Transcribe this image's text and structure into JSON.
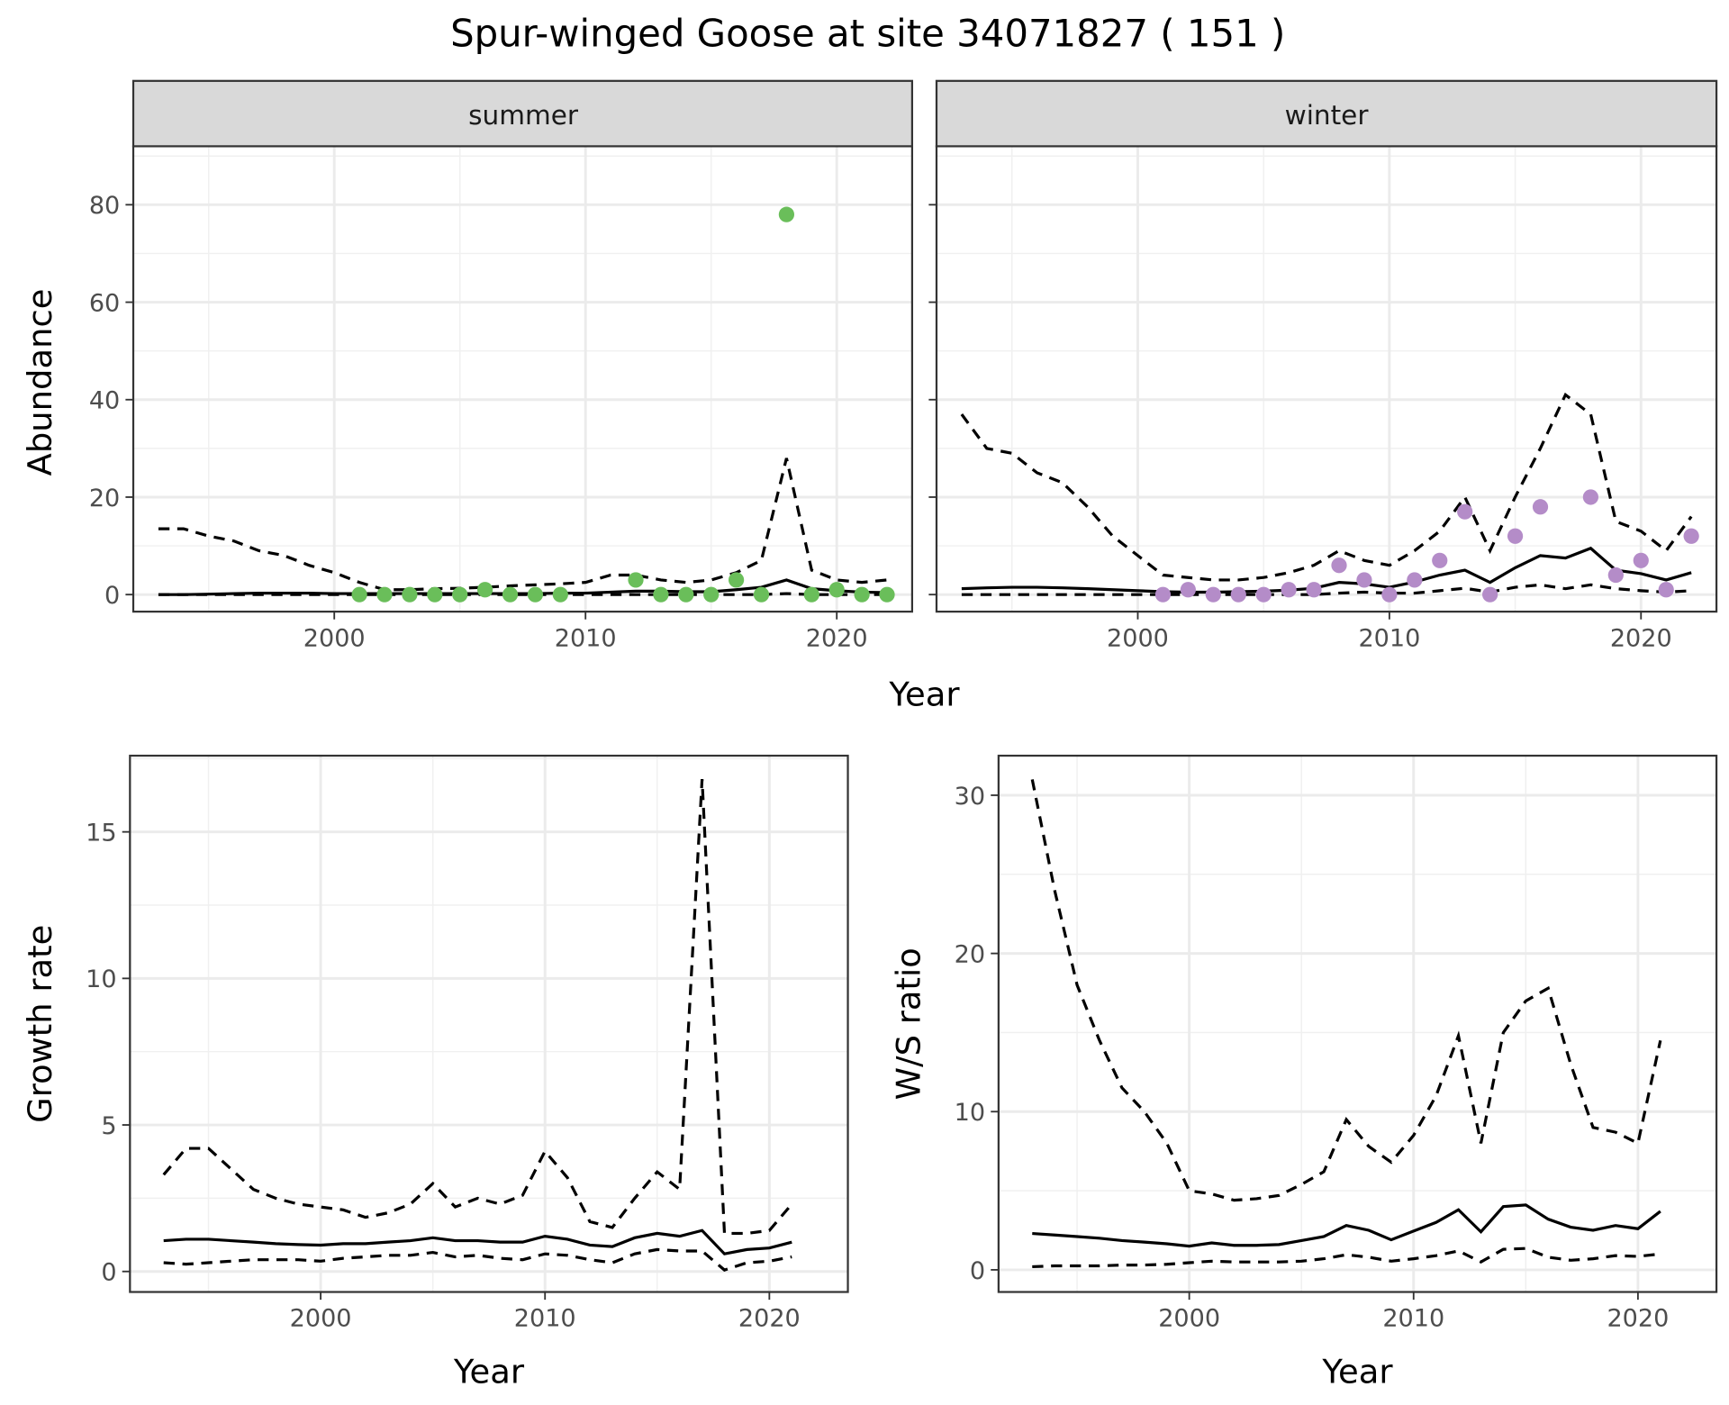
{
  "chart_data": [
    {
      "type": "line",
      "title": "Spur-winged Goose at site 34071827 ( 151 )",
      "facet": "summer",
      "xlabel": "Year",
      "ylabel": "Abundance",
      "xlim": [
        1992,
        2023
      ],
      "ylim": [
        -3.5,
        92
      ],
      "xticks": [
        2000,
        2010,
        2020
      ],
      "yticks": [
        0,
        20,
        40,
        60,
        80
      ],
      "point_color": "#6ABE5A",
      "x": [
        1993,
        1994,
        1995,
        1996,
        1997,
        1998,
        1999,
        2000,
        2001,
        2002,
        2003,
        2004,
        2005,
        2006,
        2007,
        2008,
        2009,
        2010,
        2011,
        2012,
        2013,
        2014,
        2015,
        2016,
        2017,
        2018,
        2019,
        2020,
        2021,
        2022
      ],
      "series": [
        {
          "name": "mean",
          "style": "solid",
          "values": [
            0,
            0,
            0.1,
            0.2,
            0.3,
            0.3,
            0.3,
            0.2,
            0.2,
            0.2,
            0.2,
            0.2,
            0.2,
            0.2,
            0.2,
            0.2,
            0.3,
            0.3,
            0.5,
            0.7,
            0.7,
            0.6,
            0.6,
            1,
            1.5,
            3,
            1.2,
            0.8,
            0.5,
            0.4
          ]
        },
        {
          "name": "upper",
          "style": "dashed",
          "values": [
            13.5,
            13.5,
            12,
            11,
            9,
            8,
            6,
            4.5,
            2.5,
            1,
            1,
            1.2,
            1.3,
            1.5,
            1.8,
            2,
            2.2,
            2.5,
            4,
            4,
            3,
            2.5,
            3,
            4.5,
            7,
            28,
            5,
            3,
            2.5,
            3
          ]
        },
        {
          "name": "lower",
          "style": "dashed",
          "values": [
            0,
            0,
            0,
            0,
            0,
            0,
            0,
            0,
            0,
            0,
            0,
            0,
            0,
            0,
            0,
            0,
            0,
            0,
            0,
            0,
            0,
            0,
            0,
            0,
            0,
            0.2,
            0,
            0,
            0,
            0
          ]
        }
      ],
      "points": {
        "x": [
          2001,
          2002,
          2003,
          2004,
          2005,
          2006,
          2007,
          2008,
          2009,
          2012,
          2013,
          2014,
          2015,
          2016,
          2017,
          2018,
          2019,
          2020,
          2021,
          2022
        ],
        "y": [
          0,
          0,
          0,
          0,
          0,
          1,
          0,
          0,
          0,
          3,
          0,
          0,
          0,
          3,
          0,
          78,
          0,
          1,
          0,
          0
        ]
      }
    },
    {
      "type": "line",
      "facet": "winter",
      "xlabel": "Year",
      "ylabel": "Abundance",
      "xlim": [
        1992,
        2023
      ],
      "ylim": [
        -3.5,
        92
      ],
      "xticks": [
        2000,
        2010,
        2020
      ],
      "yticks": [
        0,
        20,
        40,
        60,
        80
      ],
      "point_color": "#B48CC8",
      "x": [
        1993,
        1994,
        1995,
        1996,
        1997,
        1998,
        1999,
        2000,
        2001,
        2002,
        2003,
        2004,
        2005,
        2006,
        2007,
        2008,
        2009,
        2010,
        2011,
        2012,
        2013,
        2014,
        2015,
        2016,
        2017,
        2018,
        2019,
        2020,
        2021,
        2022
      ],
      "series": [
        {
          "name": "mean",
          "style": "solid",
          "values": [
            1.2,
            1.4,
            1.5,
            1.5,
            1.4,
            1.2,
            1,
            0.8,
            0.6,
            0.5,
            0.5,
            0.6,
            0.7,
            0.9,
            1.3,
            2.5,
            2.2,
            1.5,
            2.6,
            4,
            5,
            2.5,
            5.5,
            8,
            7.5,
            9.5,
            5,
            4.3,
            3,
            4.5
          ]
        },
        {
          "name": "upper",
          "style": "dashed",
          "values": [
            37,
            30,
            29,
            25,
            23,
            18,
            12,
            8,
            4,
            3.5,
            3,
            3,
            3.5,
            4.5,
            6,
            9,
            7,
            6,
            9,
            13,
            20,
            9,
            20,
            30,
            41,
            37,
            15,
            13,
            9,
            16
          ]
        },
        {
          "name": "lower",
          "style": "dashed",
          "values": [
            0,
            0,
            0,
            0,
            0,
            0,
            0,
            0,
            0,
            0,
            0,
            0,
            0,
            0,
            0,
            0.3,
            0.5,
            0.3,
            0.3,
            0.8,
            1.3,
            0.5,
            1.5,
            2,
            1.2,
            2,
            1.2,
            0.8,
            0.5,
            0.8
          ]
        }
      ],
      "points": {
        "x": [
          2001,
          2002,
          2003,
          2004,
          2005,
          2006,
          2007,
          2008,
          2009,
          2010,
          2011,
          2012,
          2013,
          2014,
          2015,
          2016,
          2018,
          2019,
          2020,
          2021,
          2022
        ],
        "y": [
          0,
          1,
          0,
          0,
          0,
          1,
          1,
          6,
          3,
          0,
          3,
          7,
          17,
          0,
          12,
          18,
          20,
          4,
          7,
          1,
          12
        ]
      }
    },
    {
      "type": "line",
      "xlabel": "Year",
      "ylabel": "Growth rate",
      "xlim": [
        1991.5,
        2023.5
      ],
      "ylim": [
        -0.7,
        17.6
      ],
      "xticks": [
        2000,
        2010,
        2020
      ],
      "yticks": [
        0,
        5,
        10,
        15
      ],
      "x": [
        1993,
        1994,
        1995,
        1996,
        1997,
        1998,
        1999,
        2000,
        2001,
        2002,
        2003,
        2004,
        2005,
        2006,
        2007,
        2008,
        2009,
        2010,
        2011,
        2012,
        2013,
        2014,
        2015,
        2016,
        2017,
        2018,
        2019,
        2020,
        2021
      ],
      "series": [
        {
          "name": "mean",
          "style": "solid",
          "values": [
            1.05,
            1.1,
            1.1,
            1.05,
            1.0,
            0.95,
            0.92,
            0.9,
            0.95,
            0.95,
            1.0,
            1.05,
            1.15,
            1.05,
            1.05,
            1.0,
            1.0,
            1.2,
            1.1,
            0.9,
            0.85,
            1.15,
            1.3,
            1.2,
            1.4,
            0.6,
            0.75,
            0.8,
            1.0
          ]
        },
        {
          "name": "upper",
          "style": "dashed",
          "values": [
            3.3,
            4.2,
            4.2,
            3.5,
            2.8,
            2.5,
            2.3,
            2.2,
            2.1,
            1.85,
            2.0,
            2.3,
            3.0,
            2.2,
            2.5,
            2.3,
            2.6,
            4.1,
            3.2,
            1.7,
            1.5,
            2.5,
            3.4,
            2.8,
            16.8,
            1.3,
            1.3,
            1.4,
            2.3
          ]
        },
        {
          "name": "lower",
          "style": "dashed",
          "values": [
            0.3,
            0.25,
            0.3,
            0.35,
            0.4,
            0.4,
            0.4,
            0.35,
            0.45,
            0.5,
            0.55,
            0.55,
            0.65,
            0.5,
            0.55,
            0.45,
            0.4,
            0.6,
            0.55,
            0.4,
            0.3,
            0.6,
            0.75,
            0.7,
            0.7,
            0.05,
            0.3,
            0.35,
            0.5
          ]
        }
      ]
    },
    {
      "type": "line",
      "xlabel": "Year",
      "ylabel": "W/S ratio",
      "xlim": [
        1991.5,
        2023.5
      ],
      "ylim": [
        -1.4,
        32.5
      ],
      "xticks": [
        2000,
        2010,
        2020
      ],
      "yticks": [
        0,
        10,
        20,
        30
      ],
      "x": [
        1993,
        1994,
        1995,
        1996,
        1997,
        1998,
        1999,
        2000,
        2001,
        2002,
        2003,
        2004,
        2005,
        2006,
        2007,
        2008,
        2009,
        2010,
        2011,
        2012,
        2013,
        2014,
        2015,
        2016,
        2017,
        2018,
        2019,
        2020,
        2021
      ],
      "series": [
        {
          "name": "mean",
          "style": "solid",
          "values": [
            2.3,
            2.2,
            2.1,
            2.0,
            1.85,
            1.75,
            1.65,
            1.5,
            1.7,
            1.55,
            1.55,
            1.6,
            1.85,
            2.1,
            2.8,
            2.5,
            1.9,
            2.45,
            3.0,
            3.8,
            2.4,
            4.0,
            4.1,
            3.2,
            2.7,
            2.5,
            2.8,
            2.6,
            3.7
          ]
        },
        {
          "name": "upper",
          "style": "dashed",
          "values": [
            31,
            24,
            18,
            14.5,
            11.5,
            10,
            8,
            5,
            4.8,
            4.4,
            4.5,
            4.7,
            5.4,
            6.2,
            9.5,
            7.8,
            6.8,
            8.5,
            11,
            14.8,
            8,
            15,
            17,
            17.8,
            13,
            9,
            8.7,
            8,
            14.5
          ]
        },
        {
          "name": "lower",
          "style": "dashed",
          "values": [
            0.2,
            0.25,
            0.25,
            0.25,
            0.3,
            0.3,
            0.35,
            0.45,
            0.55,
            0.5,
            0.5,
            0.5,
            0.55,
            0.7,
            0.95,
            0.8,
            0.55,
            0.7,
            0.9,
            1.2,
            0.5,
            1.3,
            1.35,
            0.8,
            0.6,
            0.7,
            0.9,
            0.85,
            1.0
          ]
        }
      ]
    }
  ]
}
